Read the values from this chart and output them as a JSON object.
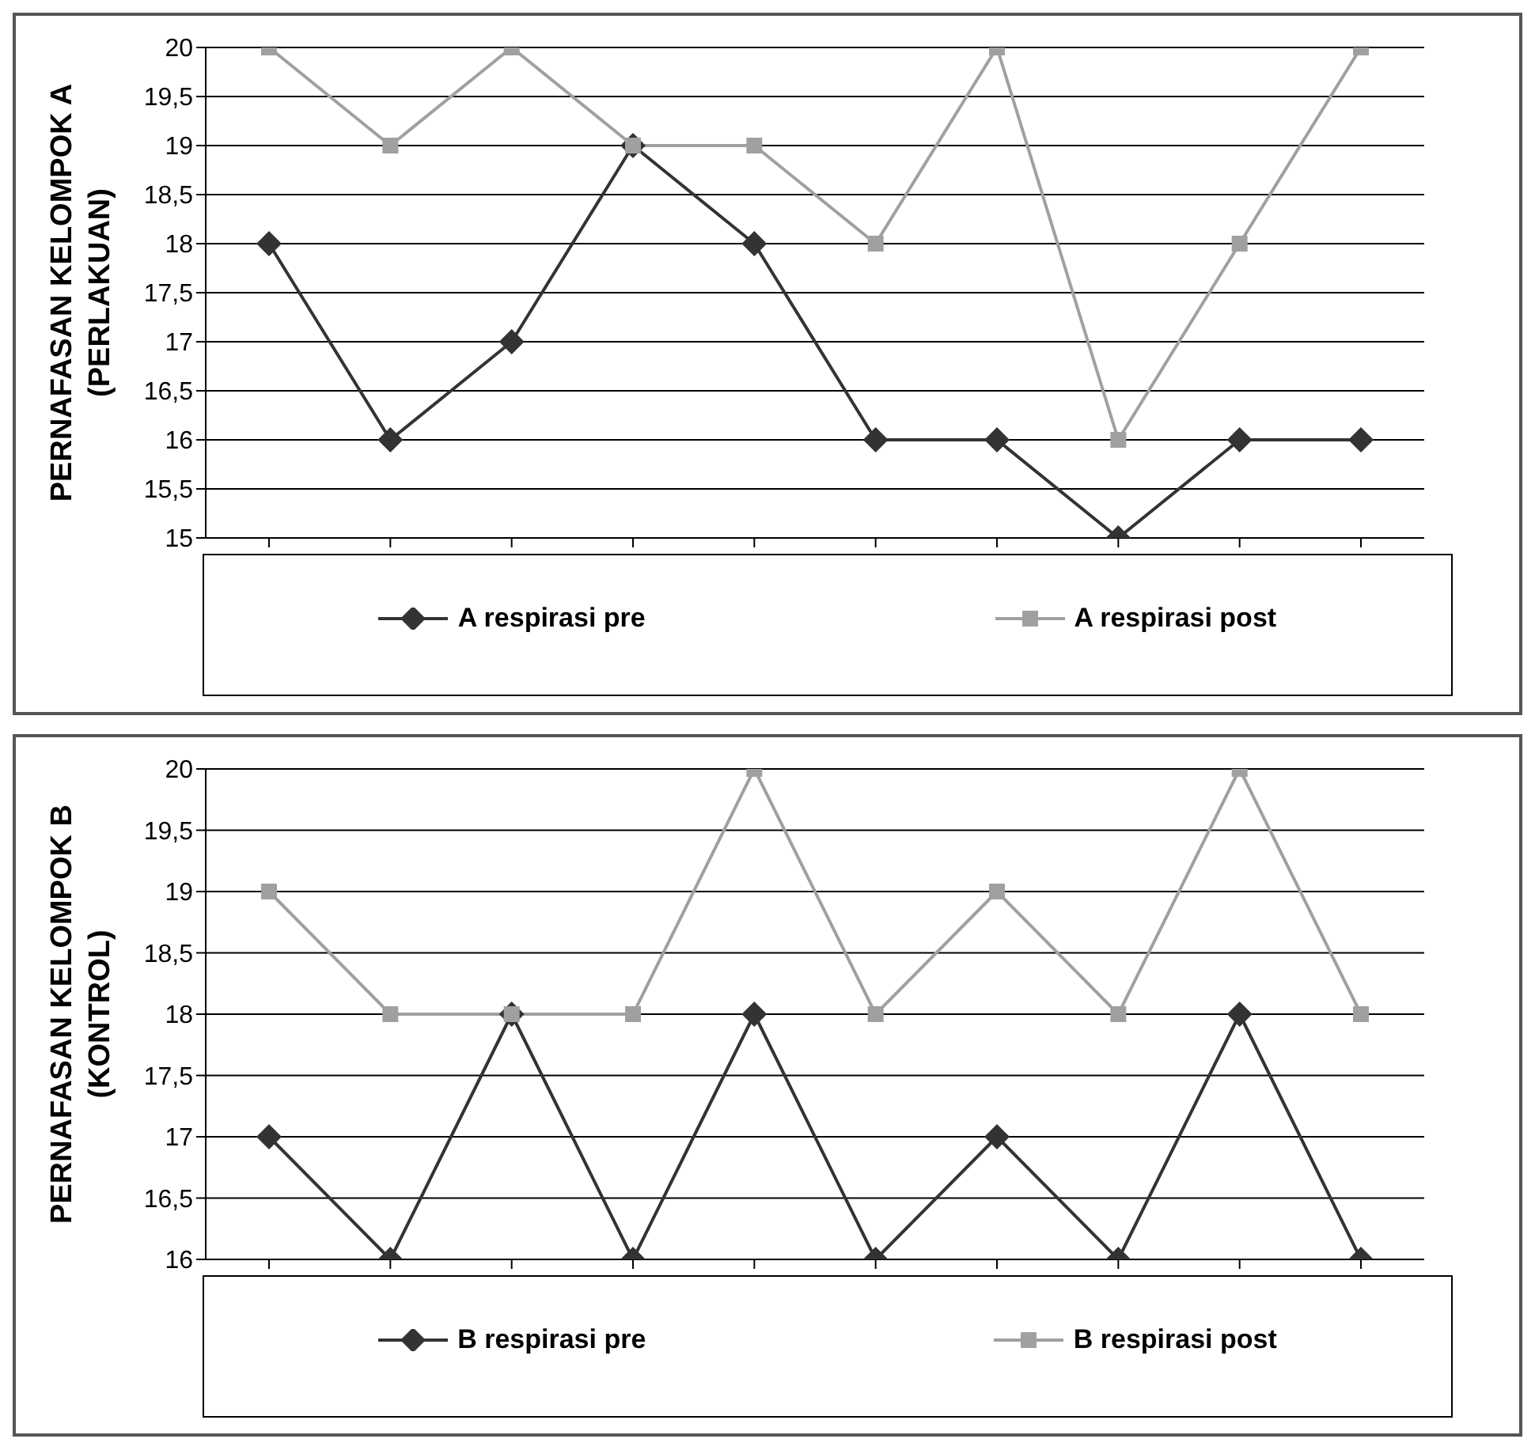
{
  "chart_data": [
    {
      "type": "line",
      "ylabel": "PERNAFASAN KELOMPOK A\n(PERLAKUAN)",
      "categories": [
        null,
        null,
        null,
        null,
        null,
        null,
        null,
        null,
        null,
        null
      ],
      "series": [
        {
          "name": "A respirasi pre",
          "color": "#333333",
          "marker": "diamond",
          "values": [
            18,
            16,
            17,
            19,
            18,
            16,
            16,
            15,
            16,
            16
          ]
        },
        {
          "name": "A respirasi post",
          "color": "#a0a0a0",
          "marker": "square",
          "values": [
            20,
            19,
            20,
            19,
            19,
            18,
            20,
            16,
            18,
            20
          ]
        }
      ],
      "ylim": [
        15,
        20
      ],
      "yticks": [
        15,
        {
          "value": 15.5,
          "label": "15,5"
        },
        16,
        {
          "value": 16.5,
          "label": "16,5"
        },
        17,
        {
          "value": 17.5,
          "label": "17,5"
        },
        18,
        {
          "value": 18.5,
          "label": "18,5"
        },
        19,
        {
          "value": 19.5,
          "label": "19,5"
        },
        20
      ],
      "grid": "y",
      "legend": "bottom",
      "line_style": "solid"
    },
    {
      "type": "line",
      "ylabel": "PERNAFASAN KELOMPOK B\n(KONTROL)",
      "categories": [
        null,
        null,
        null,
        null,
        null,
        null,
        null,
        null,
        null,
        null
      ],
      "series": [
        {
          "name": "B respirasi pre",
          "color": "#333333",
          "marker": "diamond",
          "values": [
            17,
            16,
            18,
            16,
            18,
            16,
            17,
            16,
            18,
            16
          ]
        },
        {
          "name": "B respirasi post",
          "color": "#a0a0a0",
          "marker": "square",
          "values": [
            19,
            18,
            18,
            18,
            20,
            18,
            19,
            18,
            20,
            18
          ]
        }
      ],
      "ylim": [
        16,
        20
      ],
      "yticks": [
        16,
        {
          "value": 16.5,
          "label": "16,5"
        },
        17,
        {
          "value": 17.5,
          "label": "17,5"
        },
        18,
        {
          "value": 18.5,
          "label": "18,5"
        },
        19,
        {
          "value": 19.5,
          "label": "19,5"
        },
        20
      ],
      "grid": "y",
      "legend": "bottom",
      "line_style": "solid"
    }
  ]
}
